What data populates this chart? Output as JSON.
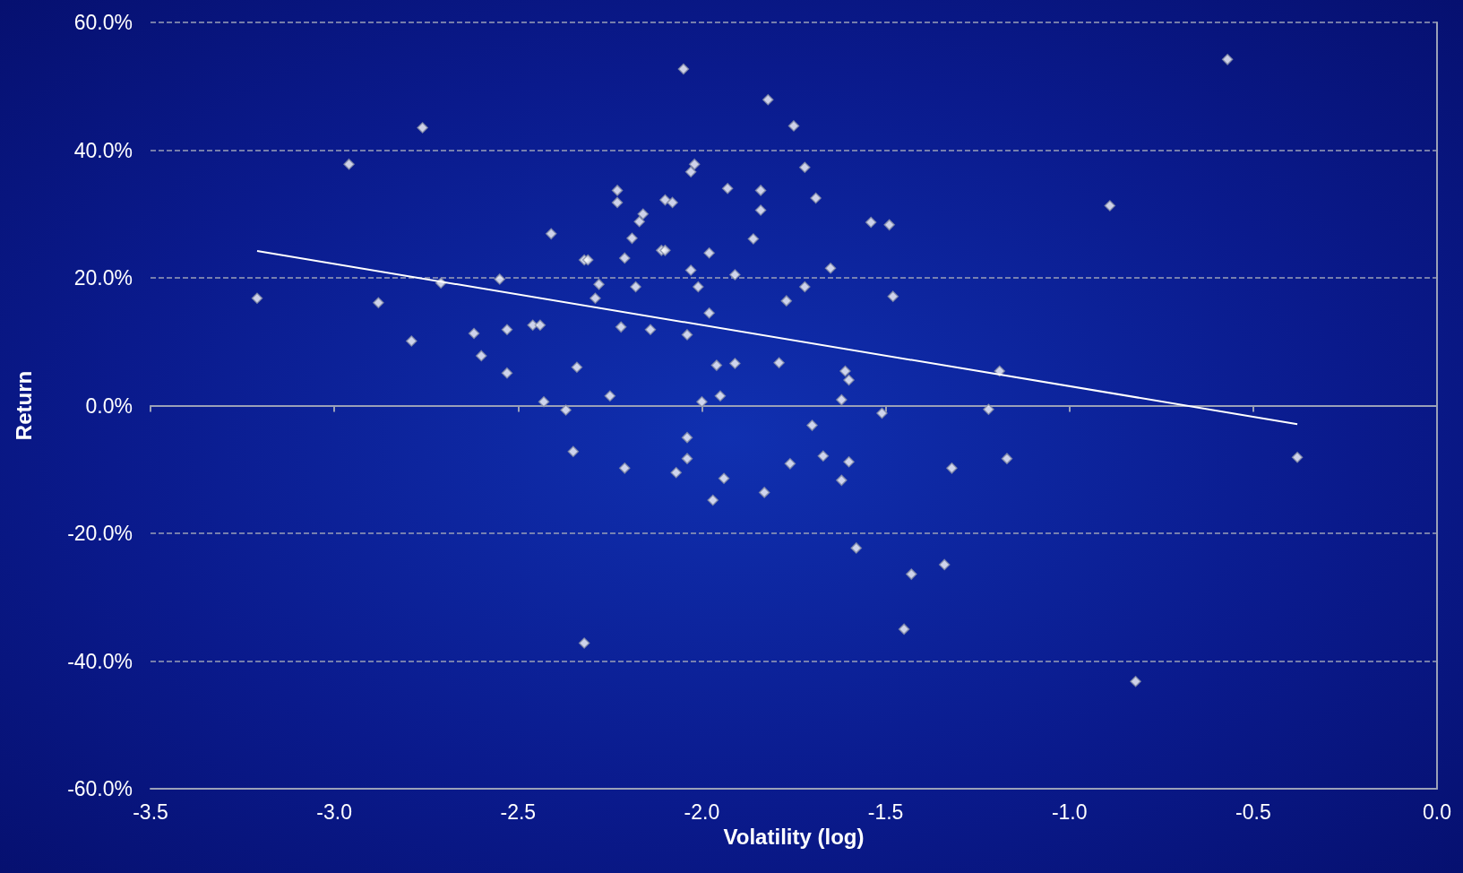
{
  "chart_data": {
    "type": "scatter",
    "xlabel": "Volatility (log)",
    "ylabel": "Return",
    "xlim": [
      -3.5,
      0
    ],
    "xticks": [
      {
        "value": -3.5,
        "label": "-3.5"
      },
      {
        "value": -3,
        "label": "-3.0"
      },
      {
        "value": -2.5,
        "label": "-2.5"
      },
      {
        "value": -2,
        "label": "-2.0"
      },
      {
        "value": -1.5,
        "label": "-1.5"
      },
      {
        "value": -1,
        "label": "-1.0"
      },
      {
        "value": -0.5,
        "label": "-0.5"
      },
      {
        "value": 0,
        "label": "0.0"
      }
    ],
    "ylim": [
      -60,
      60
    ],
    "yticks": [
      {
        "value": -60,
        "label": "-60.0%"
      },
      {
        "value": -40,
        "label": "-40.0%"
      },
      {
        "value": -20,
        "label": "-20.0%"
      },
      {
        "value": 0,
        "label": "0.0%"
      },
      {
        "value": 20,
        "label": "20.0%"
      },
      {
        "value": 40,
        "label": "40.0%"
      },
      {
        "value": 60,
        "label": "60.0%"
      }
    ],
    "grid": "y",
    "marker": "diamond",
    "series": [
      {
        "color": "#ffffff",
        "x": [
          -3.21,
          -2.96,
          -2.76,
          -2.88,
          -2.79,
          -2.71,
          -2.55,
          -2.62,
          -2.6,
          -2.53,
          -2.53,
          -2.46,
          -2.44,
          -2.41,
          -2.43,
          -2.37,
          -2.34,
          -2.35,
          -2.32,
          -2.32,
          -2.31,
          -2.29,
          -2.28,
          -2.23,
          -2.23,
          -2.25,
          -2.22,
          -2.21,
          -2.21,
          -2.19,
          -2.18,
          -2.17,
          -2.16,
          -2.14,
          -2.11,
          -2.1,
          -2.1,
          -2.08,
          -2.07,
          -2.05,
          -2.04,
          -2.04,
          -2.04,
          -2.03,
          -2.03,
          -2.02,
          -2.01,
          -2,
          -1.98,
          -1.98,
          -1.97,
          -1.96,
          -1.95,
          -1.94,
          -1.93,
          -1.91,
          -1.91,
          -1.86,
          -1.84,
          -1.84,
          -1.83,
          -1.82,
          -1.79,
          -1.77,
          -1.76,
          -1.75,
          -1.72,
          -1.72,
          -1.69,
          -1.7,
          -1.67,
          -1.65,
          -1.62,
          -1.61,
          -1.6,
          -1.62,
          -1.6,
          -1.58,
          -1.54,
          -1.51,
          -1.49,
          -1.48,
          -1.45,
          -1.43,
          -1.34,
          -1.32,
          -1.22,
          -1.19,
          -1.17,
          -0.89,
          -0.82,
          -0.57,
          -0.38
        ],
        "values": [
          16.8,
          37.8,
          43.5,
          16.1,
          10.1,
          19.2,
          19.8,
          11.3,
          7.8,
          11.9,
          5.1,
          12.6,
          12.6,
          26.9,
          0.6,
          -0.7,
          6,
          -7.2,
          -37.2,
          22.8,
          22.8,
          16.8,
          19,
          33.7,
          31.8,
          1.5,
          12.3,
          23.1,
          -9.8,
          26.2,
          18.6,
          28.8,
          30,
          11.9,
          24.3,
          24.3,
          32.2,
          31.8,
          -10.5,
          52.7,
          -5,
          -8.3,
          11.1,
          21.2,
          36.6,
          37.8,
          18.6,
          0.6,
          23.9,
          14.5,
          -14.8,
          6.3,
          1.5,
          -11.4,
          34,
          20.5,
          6.6,
          26.1,
          30.6,
          33.7,
          -13.6,
          47.9,
          6.7,
          16.4,
          -9.1,
          43.8,
          18.6,
          37.3,
          32.5,
          -3.1,
          -7.9,
          21.5,
          0.9,
          5.4,
          4,
          -11.7,
          -8.8,
          -22.3,
          28.7,
          -1.2,
          28.3,
          17.1,
          -35,
          -26.4,
          -24.9,
          -9.8,
          -0.6,
          5.4,
          -8.3,
          31.3,
          -43.2,
          54.2,
          -8.1
        ]
      },
      {
        "type": "line",
        "color": "#ffffff",
        "marker": "none",
        "x": [
          -3.21,
          -0.38
        ],
        "values": [
          24.2,
          -2.9
        ]
      }
    ]
  }
}
